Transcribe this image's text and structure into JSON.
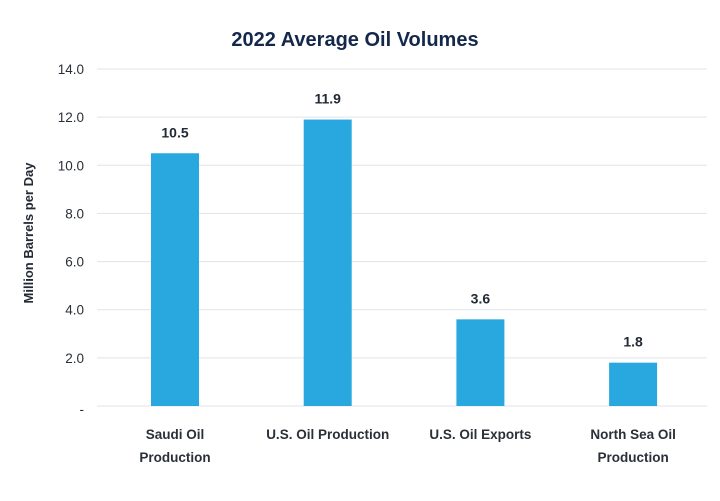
{
  "chart_data": {
    "type": "bar",
    "title": "2022 Average Oil Volumes",
    "xlabel": "",
    "ylabel": "Million Barrels per Day",
    "ylim": [
      0,
      14
    ],
    "yticks": [
      0,
      2,
      4,
      6,
      8,
      10,
      12,
      14
    ],
    "ytick_labels": [
      "-",
      "2.0",
      "4.0",
      "6.0",
      "8.0",
      "10.0",
      "12.0",
      "14.0"
    ],
    "grid": true,
    "legend": "none",
    "categories": [
      [
        "Saudi Oil",
        "Production"
      ],
      [
        "U.S. Oil Production"
      ],
      [
        "U.S. Oil Exports"
      ],
      [
        "North Sea Oil",
        "Production"
      ]
    ],
    "values": [
      10.5,
      11.9,
      3.6,
      1.8
    ],
    "data_labels": [
      "10.5",
      "11.9",
      "3.6",
      "1.8"
    ],
    "bar_color": "#29a8e0"
  }
}
